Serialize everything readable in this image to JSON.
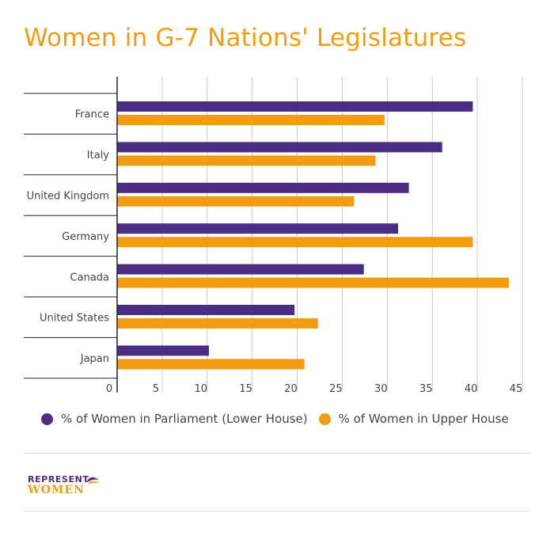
{
  "colors": {
    "lower": "#4b2e83",
    "upper": "#f39c12",
    "title": "#f39c12",
    "grid": "#c8c8c8",
    "axis": "#222222"
  },
  "legend": {
    "lower_label": "% of Women in Parliament (Lower House)",
    "upper_label": "% of Women in Upper House"
  },
  "logo": {
    "top": "REPRESENT",
    "bottom": "WOMEN",
    "flag_icon": "flag-icon"
  },
  "chart_data": {
    "type": "bar",
    "orientation": "horizontal",
    "title": "Women in G-7 Nations'  Legislatures",
    "categories": [
      "France",
      "Italy",
      "United Kingdom",
      "Germany",
      "Canada",
      "United States",
      "Japan"
    ],
    "series": [
      {
        "name": "% of Women in Parliament (Lower House)",
        "key": "lower",
        "values": [
          39.5,
          36.1,
          32.4,
          31.2,
          27.4,
          19.7,
          10.2
        ]
      },
      {
        "name": "% of Women in Upper House",
        "key": "upper",
        "values": [
          29.7,
          28.7,
          26.3,
          39.5,
          43.5,
          22.3,
          20.8
        ]
      }
    ],
    "xlim": [
      0,
      45
    ],
    "xticks": [
      0,
      5,
      10,
      15,
      20,
      25,
      30,
      35,
      40,
      45
    ],
    "grid": true,
    "legend_position": "bottom"
  }
}
